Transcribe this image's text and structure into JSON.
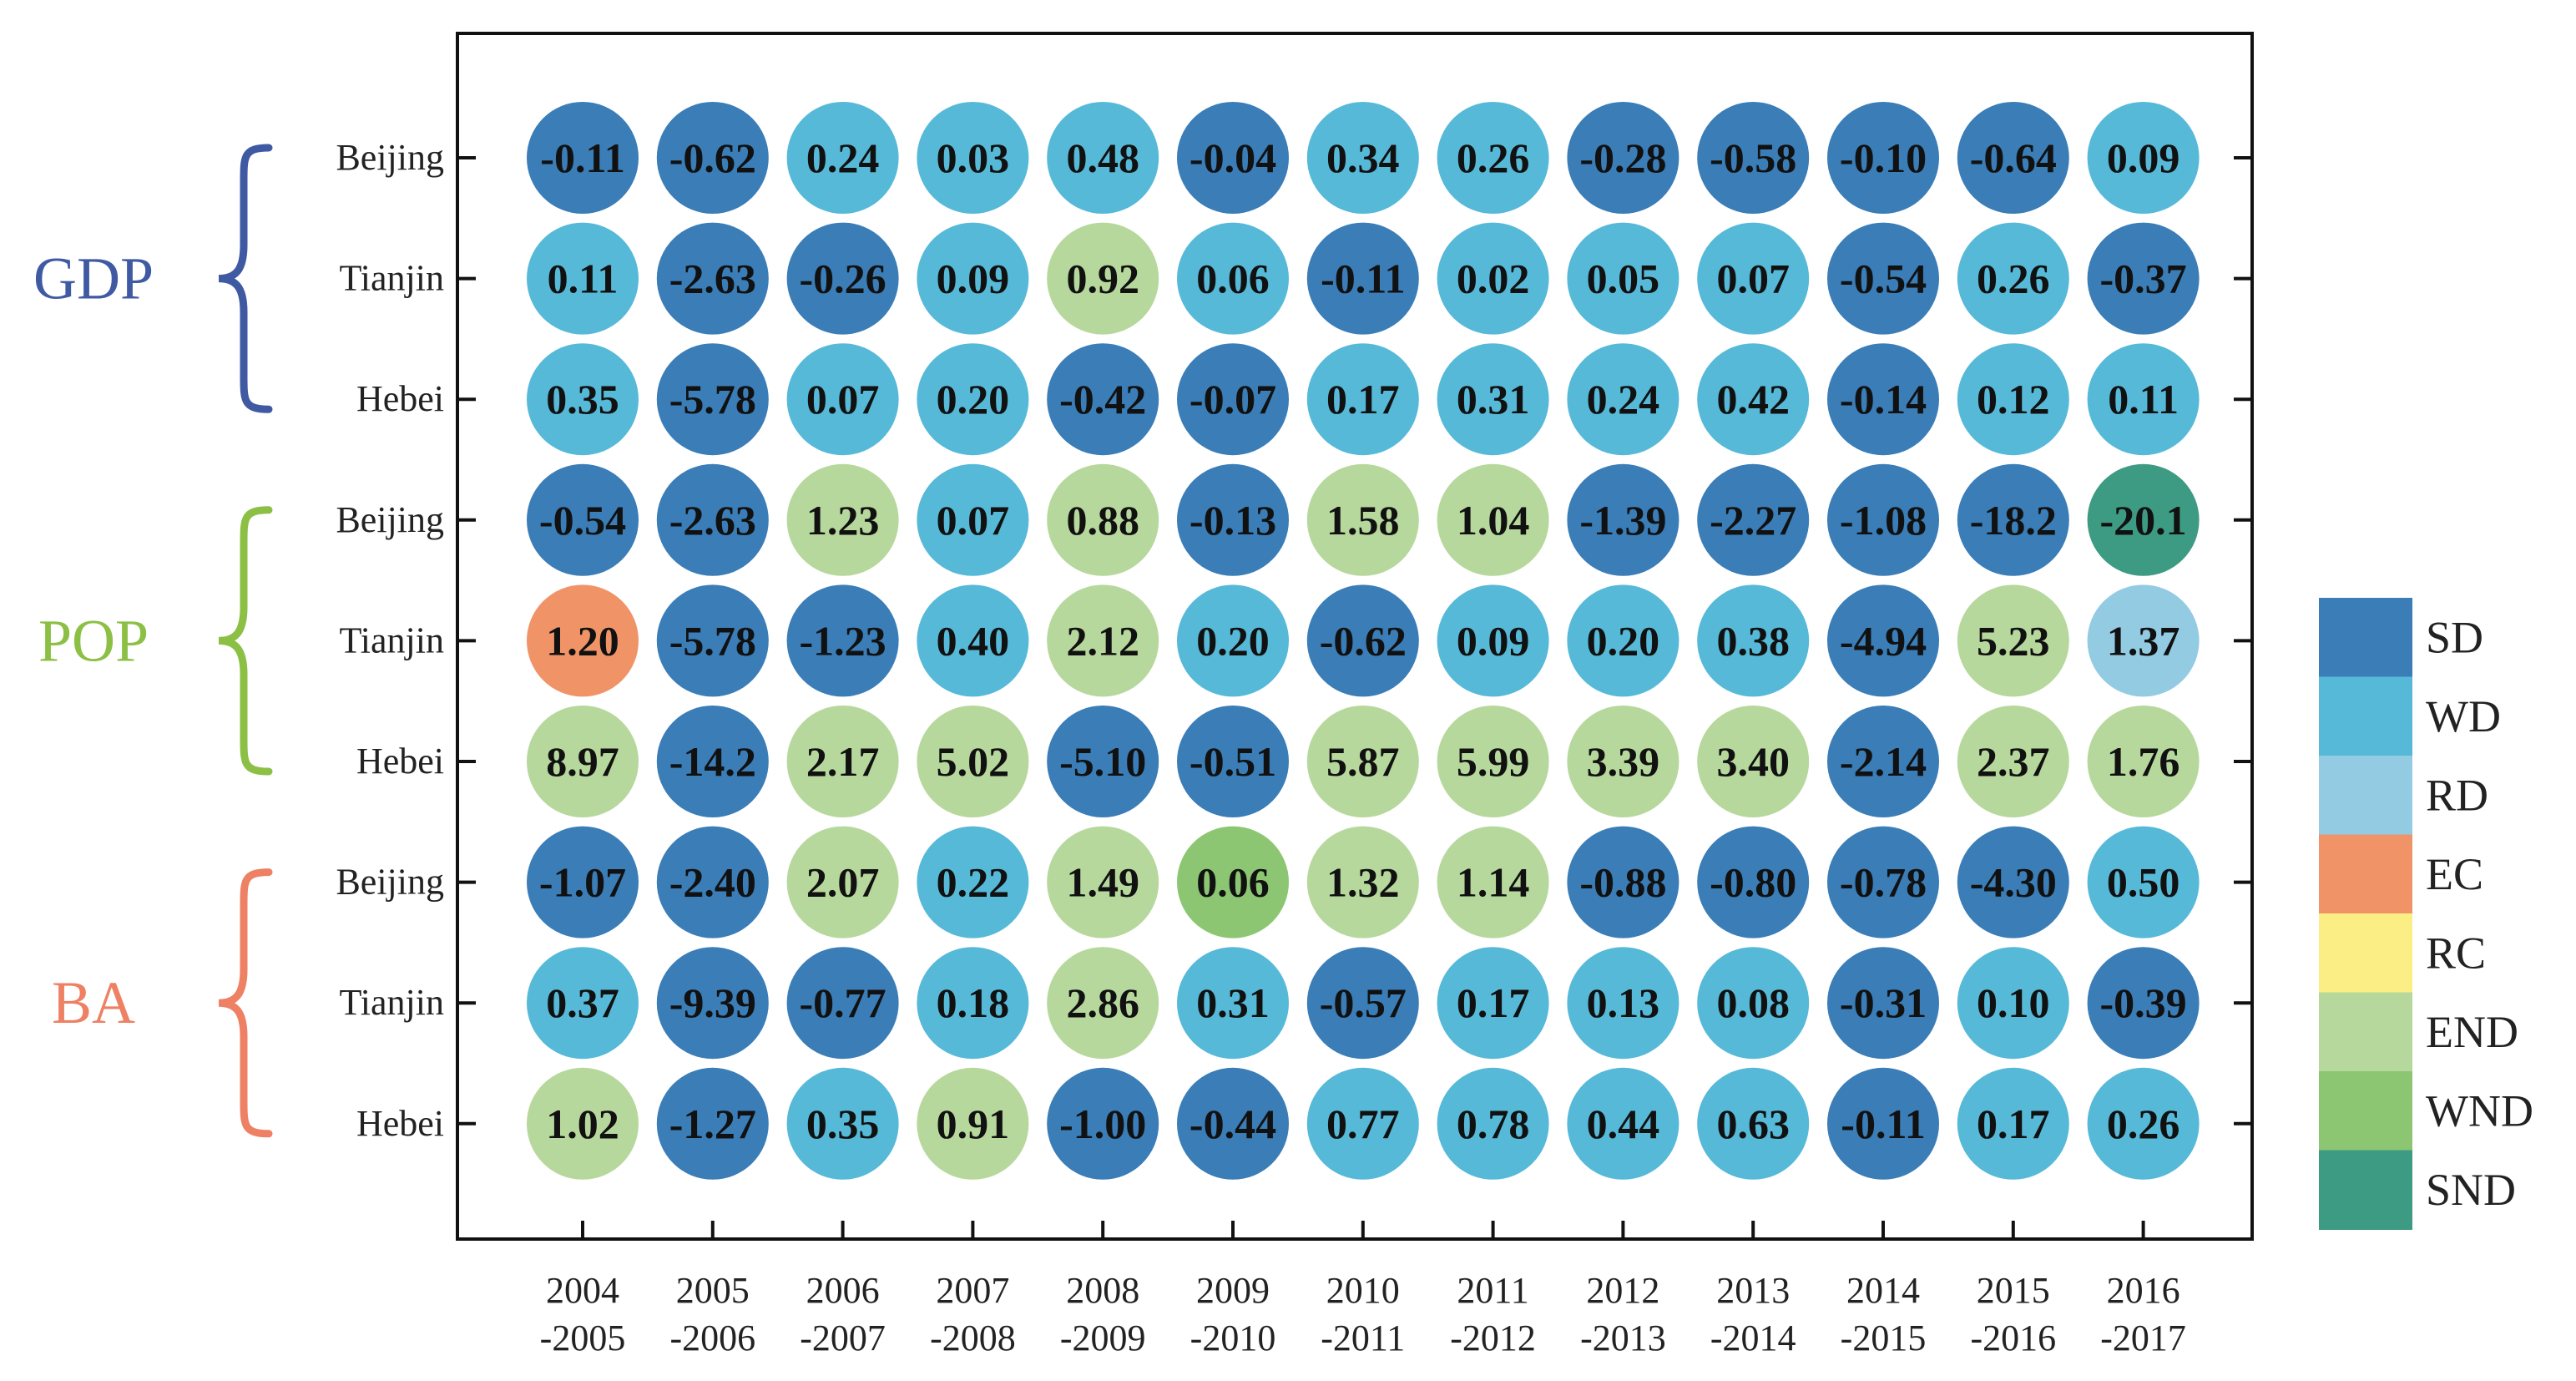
{
  "chart_data": {
    "type": "heatmap",
    "title": "",
    "x_categories": [
      [
        "2004",
        "-2005"
      ],
      [
        "2005",
        "-2006"
      ],
      [
        "2006",
        "-2007"
      ],
      [
        "2007",
        "-2008"
      ],
      [
        "2008",
        "-2009"
      ],
      [
        "2009",
        "-2010"
      ],
      [
        "2010",
        "-2011"
      ],
      [
        "2011",
        "-2012"
      ],
      [
        "2012",
        "-2013"
      ],
      [
        "2013",
        "-2014"
      ],
      [
        "2014",
        "-2015"
      ],
      [
        "2015",
        "-2016"
      ],
      [
        "2016",
        "-2017"
      ]
    ],
    "groups": [
      {
        "name": "GDP",
        "color": "#3F5AA3",
        "rows": [
          {
            "region": "Beijing",
            "values": [
              "-0.11",
              "-0.62",
              "0.24",
              "0.03",
              "0.48",
              "-0.04",
              "0.34",
              "0.26",
              "-0.28",
              "-0.58",
              "-0.10",
              "-0.64",
              "0.09"
            ],
            "states": [
              "SD",
              "SD",
              "WD",
              "WD",
              "WD",
              "SD",
              "WD",
              "WD",
              "SD",
              "SD",
              "SD",
              "SD",
              "WD"
            ]
          },
          {
            "region": "Tianjin",
            "values": [
              "0.11",
              "-2.63",
              "-0.26",
              "0.09",
              "0.92",
              "0.06",
              "-0.11",
              "0.02",
              "0.05",
              "0.07",
              "-0.54",
              "0.26",
              "-0.37"
            ],
            "states": [
              "WD",
              "SD",
              "SD",
              "WD",
              "END",
              "WD",
              "SD",
              "WD",
              "WD",
              "WD",
              "SD",
              "WD",
              "SD"
            ]
          },
          {
            "region": "Hebei",
            "values": [
              "0.35",
              "-5.78",
              "0.07",
              "0.20",
              "-0.42",
              "-0.07",
              "0.17",
              "0.31",
              "0.24",
              "0.42",
              "-0.14",
              "0.12",
              "0.11"
            ],
            "states": [
              "WD",
              "SD",
              "WD",
              "WD",
              "SD",
              "SD",
              "WD",
              "WD",
              "WD",
              "WD",
              "SD",
              "WD",
              "WD"
            ]
          }
        ]
      },
      {
        "name": "POP",
        "color": "#8CC045",
        "rows": [
          {
            "region": "Beijing",
            "values": [
              "-0.54",
              "-2.63",
              "1.23",
              "0.07",
              "0.88",
              "-0.13",
              "1.58",
              "1.04",
              "-1.39",
              "-2.27",
              "-1.08",
              "-18.2",
              "-20.1"
            ],
            "states": [
              "SD",
              "SD",
              "END",
              "WD",
              "END",
              "SD",
              "END",
              "END",
              "SD",
              "SD",
              "SD",
              "SD",
              "SND"
            ]
          },
          {
            "region": "Tianjin",
            "values": [
              "1.20",
              "-5.78",
              "-1.23",
              "0.40",
              "2.12",
              "0.20",
              "-0.62",
              "0.09",
              "0.20",
              "0.38",
              "-4.94",
              "5.23",
              "1.37"
            ],
            "states": [
              "EC",
              "SD",
              "SD",
              "WD",
              "END",
              "WD",
              "SD",
              "WD",
              "WD",
              "WD",
              "SD",
              "END",
              "RD"
            ]
          },
          {
            "region": "Hebei",
            "values": [
              "8.97",
              "-14.2",
              "2.17",
              "5.02",
              "-5.10",
              "-0.51",
              "5.87",
              "5.99",
              "3.39",
              "3.40",
              "-2.14",
              "2.37",
              "1.76"
            ],
            "states": [
              "END",
              "SD",
              "END",
              "END",
              "SD",
              "SD",
              "END",
              "END",
              "END",
              "END",
              "SD",
              "END",
              "END"
            ]
          }
        ]
      },
      {
        "name": "BA",
        "color": "#EE8064",
        "rows": [
          {
            "region": "Beijing",
            "values": [
              "-1.07",
              "-2.40",
              "2.07",
              "0.22",
              "1.49",
              "0.06",
              "1.32",
              "1.14",
              "-0.88",
              "-0.80",
              "-0.78",
              "-4.30",
              "0.50"
            ],
            "states": [
              "SD",
              "SD",
              "END",
              "WD",
              "END",
              "WND",
              "END",
              "END",
              "SD",
              "SD",
              "SD",
              "SD",
              "WD"
            ]
          },
          {
            "region": "Tianjin",
            "values": [
              "0.37",
              "-9.39",
              "-0.77",
              "0.18",
              "2.86",
              "0.31",
              "-0.57",
              "0.17",
              "0.13",
              "0.08",
              "-0.31",
              "0.10",
              "-0.39"
            ],
            "states": [
              "WD",
              "SD",
              "SD",
              "WD",
              "END",
              "WD",
              "SD",
              "WD",
              "WD",
              "WD",
              "SD",
              "WD",
              "SD"
            ]
          },
          {
            "region": "Hebei",
            "values": [
              "1.02",
              "-1.27",
              "0.35",
              "0.91",
              "-1.00",
              "-0.44",
              "0.77",
              "0.78",
              "0.44",
              "0.63",
              "-0.11",
              "0.17",
              "0.26"
            ],
            "states": [
              "END",
              "SD",
              "WD",
              "END",
              "SD",
              "SD",
              "WD",
              "WD",
              "WD",
              "WD",
              "SD",
              "WD",
              "WD"
            ]
          }
        ]
      }
    ],
    "legend": [
      {
        "label": "SD",
        "color": "#3A7DB7"
      },
      {
        "label": "WD",
        "color": "#56B9D8"
      },
      {
        "label": "RD",
        "color": "#93CBE3"
      },
      {
        "label": "EC",
        "color": "#F09468"
      },
      {
        "label": "RC",
        "color": "#FBEE84"
      },
      {
        "label": "END",
        "color": "#B7D89C"
      },
      {
        "label": "WND",
        "color": "#8CC673"
      },
      {
        "label": "SND",
        "color": "#3E9B83"
      }
    ],
    "legend_position": "right",
    "grid": false
  }
}
